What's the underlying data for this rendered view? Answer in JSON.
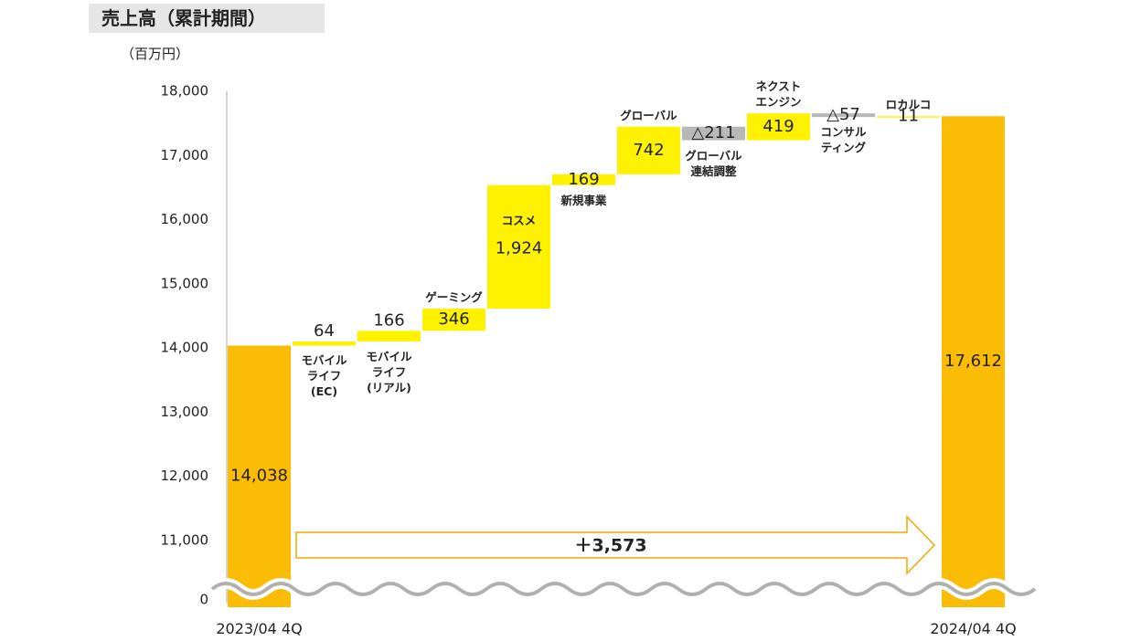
{
  "chart_data": {
    "type": "waterfall",
    "title": "売上高（累計期間）",
    "unit": "（百万円）",
    "categories": [
      "2023/04 4Q",
      "モバイル\nライフ\n(EC)",
      "モバイル\nライフ\n(リアル)",
      "ゲーミング",
      "コスメ",
      "新規事業",
      "グローバル",
      "グローバル\n連結調整",
      "ネクスト\nエンジン",
      "コンサル\nティング",
      "ロカルコ",
      "2024/04 4Q"
    ],
    "measures": [
      "absolute",
      "relative",
      "relative",
      "relative",
      "relative",
      "relative",
      "relative",
      "relative",
      "relative",
      "relative",
      "relative",
      "total"
    ],
    "values": [
      14038,
      64,
      166,
      346,
      1924,
      169,
      742,
      -211,
      419,
      -57,
      11,
      17612
    ],
    "value_labels": [
      "14,038",
      "64",
      "166",
      "346",
      "1,924",
      "169",
      "742",
      "△211",
      "419",
      "△57",
      "11",
      "17,612"
    ],
    "total_color": "#fbbc05",
    "increase_color": "#fff200",
    "decrease_color": "#b8b8b8",
    "ylim": [
      0,
      18000
    ],
    "yticks": [
      0,
      {
        "value": 11000,
        "label": "11,000"
      },
      {
        "value": 12000,
        "label": "12,000"
      },
      {
        "value": 13000,
        "label": "13,000"
      },
      {
        "value": 14000,
        "label": "14,000"
      },
      {
        "value": 15000,
        "label": "15,000"
      },
      {
        "value": 16000,
        "label": "16,000"
      },
      {
        "value": 17000,
        "label": "17,000"
      },
      {
        "value": 18000,
        "label": "18,000"
      }
    ],
    "axis_break": true,
    "annotation": "＋3,573"
  }
}
